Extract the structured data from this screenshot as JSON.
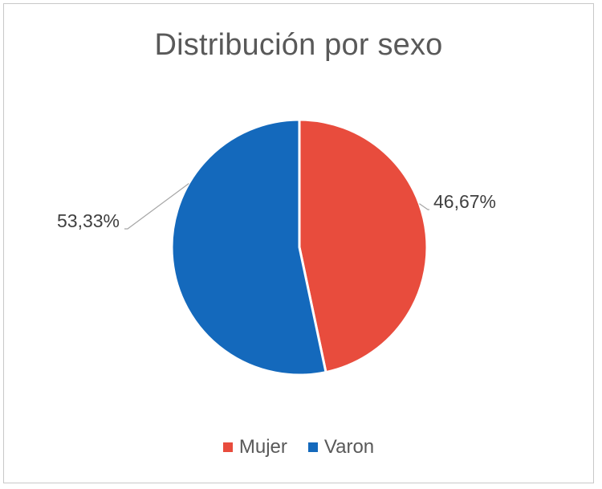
{
  "chart_data": {
    "type": "pie",
    "title": "Distribución por sexo",
    "categories": [
      "Mujer",
      "Varon"
    ],
    "values": [
      46.67,
      53.33
    ],
    "labels": [
      "46,67%",
      "53,33%"
    ],
    "colors": [
      "#E84C3D",
      "#1469BC"
    ],
    "legend_position": "bottom"
  }
}
